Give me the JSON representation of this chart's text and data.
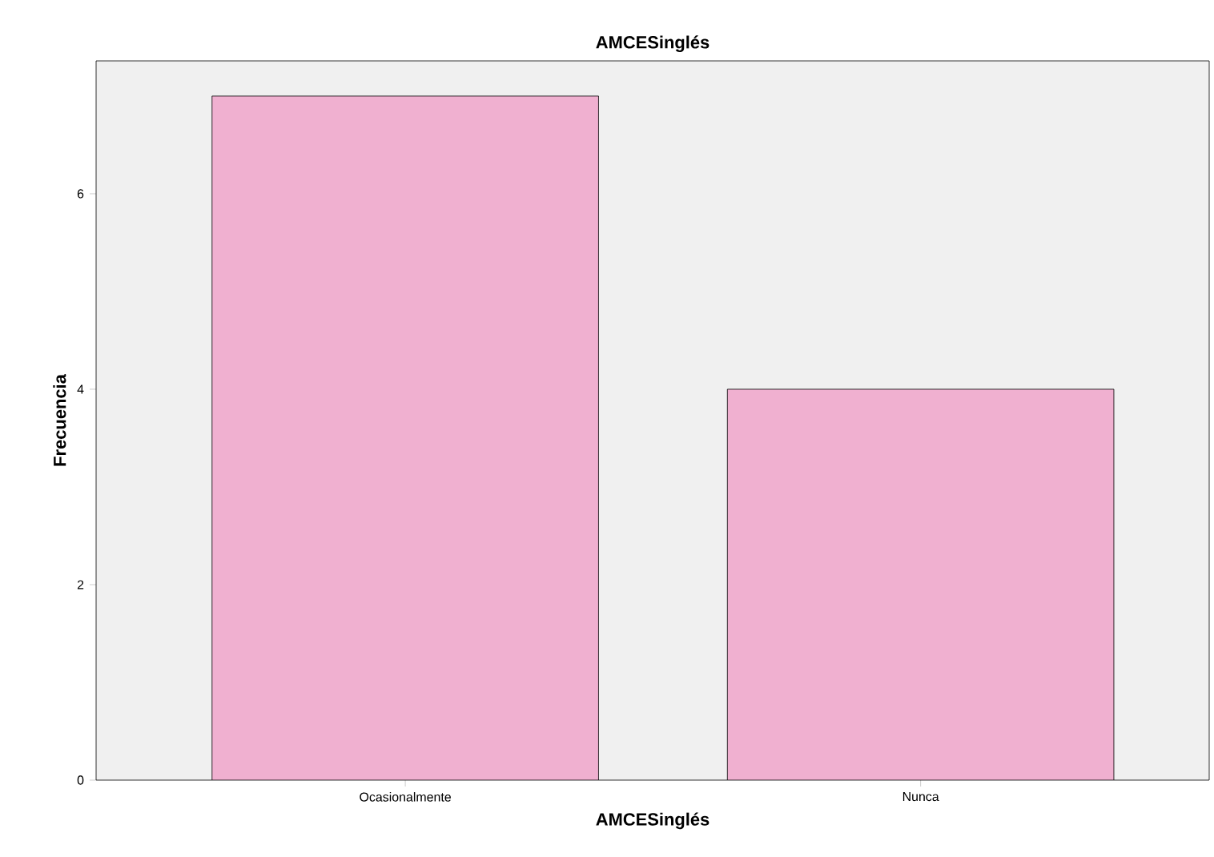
{
  "chart_data": {
    "type": "bar",
    "title": "AMCESinglés",
    "xlabel": "AMCESinglés",
    "ylabel": "Frecuencia",
    "categories": [
      "Ocasionalmente",
      "Nunca"
    ],
    "values": [
      7,
      4
    ],
    "color": "#f0b0d0",
    "ylim": [
      0,
      7.36
    ],
    "yticks": [
      0,
      2,
      4,
      6
    ],
    "grid": false
  }
}
